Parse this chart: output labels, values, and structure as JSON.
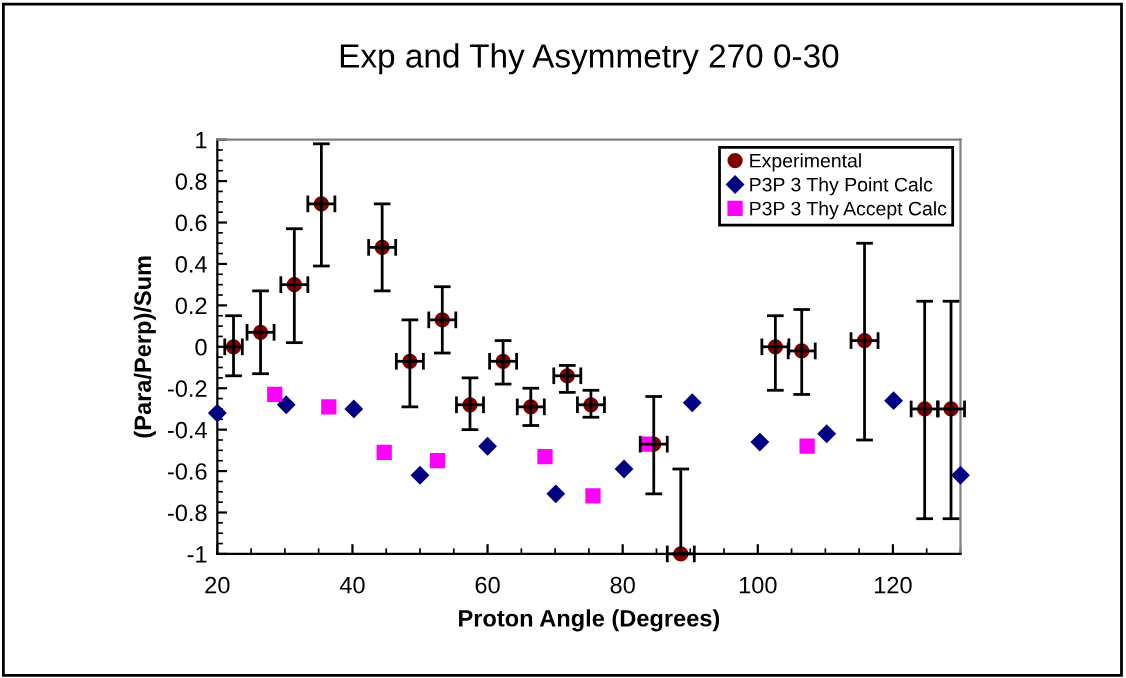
{
  "chart_data": {
    "type": "scatter",
    "title": "Exp and Thy Asymmetry 270 0-30",
    "xlabel": "Proton Angle (Degrees)",
    "ylabel": "(Para/Perp)/Sum",
    "xlim": [
      20,
      130
    ],
    "xticks": [
      20,
      40,
      60,
      80,
      100,
      120
    ],
    "ylim": [
      -1,
      1
    ],
    "yticks": [
      -1,
      -0.8,
      -0.6,
      -0.4,
      -0.2,
      0,
      0.2,
      0.4,
      0.6,
      0.8,
      1
    ],
    "legend": "top right",
    "grid": false,
    "series": [
      {
        "name": "Experimental",
        "color": "#800000",
        "marker": "circle",
        "x": [
          22.4,
          26.4,
          31.4,
          35.4,
          44.4,
          48.5,
          53.3,
          57.4,
          62.3,
          66.4,
          71.8,
          75.3,
          84.6,
          88.6,
          102.6,
          106.5,
          115.8,
          124.7,
          128.6
        ],
        "values": [
          0.0,
          0.07,
          0.3,
          0.69,
          0.48,
          -0.07,
          0.13,
          -0.28,
          -0.07,
          -0.29,
          -0.14,
          -0.28,
          -0.47,
          -1.0,
          0.0,
          -0.02,
          0.03,
          -0.3,
          -0.3
        ],
        "errors": [
          [
            -0.14,
            0.15
          ],
          [
            -0.13,
            0.27
          ],
          [
            0.02,
            0.57
          ],
          [
            0.39,
            0.98
          ],
          [
            0.27,
            0.69
          ],
          [
            -0.29,
            0.13
          ],
          [
            -0.03,
            0.29
          ],
          [
            -0.4,
            -0.15
          ],
          [
            -0.18,
            0.03
          ],
          [
            -0.38,
            -0.2
          ],
          [
            -0.22,
            -0.09
          ],
          [
            -0.34,
            -0.21
          ],
          [
            -0.71,
            -0.24
          ],
          [
            -1.0,
            -0.59
          ],
          [
            -0.21,
            0.15
          ],
          [
            -0.23,
            0.18
          ],
          [
            -0.45,
            0.5
          ],
          [
            -0.83,
            0.22
          ],
          [
            -0.83,
            0.22
          ]
        ],
        "xerrors": [
          1.3,
          2,
          2,
          2,
          2,
          2,
          2,
          2,
          2,
          2,
          2,
          2,
          2,
          2,
          2,
          2,
          2,
          2,
          2
        ]
      },
      {
        "name": "P3P 3 Thy Point Calc",
        "color": "#000080",
        "marker": "diamond",
        "x": [
          20,
          30.2,
          40.2,
          50.0,
          60.0,
          70.1,
          80.2,
          90.3,
          100.3,
          110.2,
          120.1,
          130
        ],
        "values": [
          -0.32,
          -0.28,
          -0.3,
          -0.62,
          -0.48,
          -0.71,
          -0.59,
          -0.27,
          -0.46,
          -0.42,
          -0.26,
          -0.62
        ]
      },
      {
        "name": "P3P 3 Thy Accept Calc",
        "color": "#ff00ff",
        "marker": "square",
        "x": [
          28.5,
          36.5,
          44.7,
          52.6,
          68.5,
          75.6,
          83.6,
          107.3
        ],
        "values": [
          -0.23,
          -0.29,
          -0.51,
          -0.55,
          -0.53,
          -0.72,
          -0.47,
          -0.48
        ]
      }
    ]
  }
}
